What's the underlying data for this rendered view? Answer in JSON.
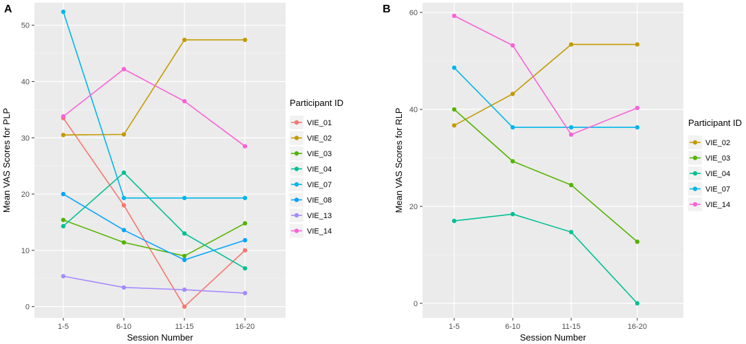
{
  "chart_data": [
    {
      "type": "line",
      "panel_label": "A",
      "xlabel": "Session Number",
      "ylabel": "Mean VAS Scores for PLP",
      "categories": [
        "1-5",
        "6-10",
        "11-15",
        "16-20"
      ],
      "yticks": [
        0,
        10,
        20,
        30,
        40,
        50
      ],
      "ylim": [
        -2,
        54
      ],
      "grid": true,
      "legend_title": "Participant ID",
      "legend_position": "right",
      "series": [
        {
          "name": "VIE_01",
          "color": "#F8766D",
          "values": [
            33.5,
            18,
            0,
            10
          ]
        },
        {
          "name": "VIE_02",
          "color": "#C49A00",
          "values": [
            30.5,
            30.6,
            47.4,
            47.4
          ]
        },
        {
          "name": "VIE_03",
          "color": "#53B400",
          "values": [
            15.4,
            11.4,
            9,
            14.8
          ]
        },
        {
          "name": "VIE_04",
          "color": "#00C094",
          "values": [
            14.3,
            23.8,
            13,
            6.8
          ]
        },
        {
          "name": "VIE_07",
          "color": "#00B6EB",
          "values": [
            52.4,
            19.3,
            19.3,
            19.3
          ]
        },
        {
          "name": "VIE_08",
          "color": "#06A4FF",
          "values": [
            20,
            13.6,
            8.3,
            11.8
          ]
        },
        {
          "name": "VIE_13",
          "color": "#A58AFF",
          "values": [
            5.4,
            3.4,
            3,
            2.4
          ]
        },
        {
          "name": "VIE_14",
          "color": "#FB61D7",
          "values": [
            33.8,
            42.2,
            36.5,
            28.5
          ]
        }
      ]
    },
    {
      "type": "line",
      "panel_label": "B",
      "xlabel": "Session Number",
      "ylabel": "Mean VAS Scores for RLP",
      "categories": [
        "1-5",
        "6-10",
        "11-15",
        "16-20"
      ],
      "yticks": [
        0,
        20,
        40,
        60
      ],
      "ylim": [
        -3,
        62
      ],
      "grid": true,
      "legend_title": "Participant ID",
      "legend_position": "right",
      "series": [
        {
          "name": "VIE_02",
          "color": "#C49A00",
          "values": [
            36.7,
            43.2,
            53.4,
            53.4
          ]
        },
        {
          "name": "VIE_03",
          "color": "#53B400",
          "values": [
            40,
            29.3,
            24.4,
            12.7
          ]
        },
        {
          "name": "VIE_04",
          "color": "#00C094",
          "values": [
            17,
            18.4,
            14.7,
            0
          ]
        },
        {
          "name": "VIE_07",
          "color": "#00B6EB",
          "values": [
            48.6,
            36.3,
            36.3,
            36.3
          ]
        },
        {
          "name": "VIE_14",
          "color": "#FB61D7",
          "values": [
            59.3,
            53.2,
            34.8,
            40.3
          ]
        }
      ]
    }
  ]
}
